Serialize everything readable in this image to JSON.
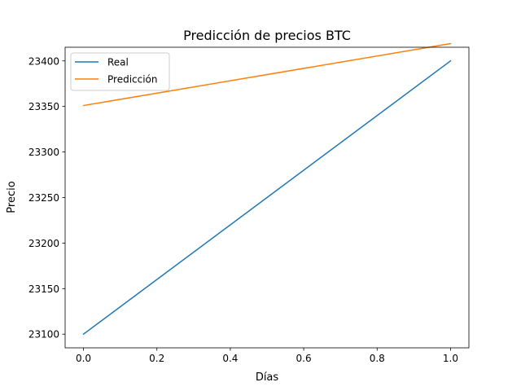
{
  "chart_data": {
    "type": "line",
    "title": "Predicción de precios BTC",
    "xlabel": "Días",
    "ylabel": "Precio",
    "xlim": [
      -0.05,
      1.05
    ],
    "ylim": [
      23085,
      23415
    ],
    "xticks": [
      0.0,
      0.2,
      0.4,
      0.6,
      0.8,
      1.0
    ],
    "xtick_labels": [
      "0.0",
      "0.2",
      "0.4",
      "0.6",
      "0.8",
      "1.0"
    ],
    "yticks": [
      23100,
      23150,
      23200,
      23250,
      23300,
      23350,
      23400
    ],
    "ytick_labels": [
      "23100",
      "23150",
      "23200",
      "23250",
      "23300",
      "23350",
      "23400"
    ],
    "grid": false,
    "legend_position": "upper-left",
    "series": [
      {
        "name": "Real",
        "color": "#1f77b4",
        "x": [
          0,
          1
        ],
        "y": [
          23100,
          23400
        ]
      },
      {
        "name": "Predicción",
        "color": "#ff7f0e",
        "x": [
          0,
          1
        ],
        "y": [
          23351,
          23419
        ]
      }
    ]
  }
}
